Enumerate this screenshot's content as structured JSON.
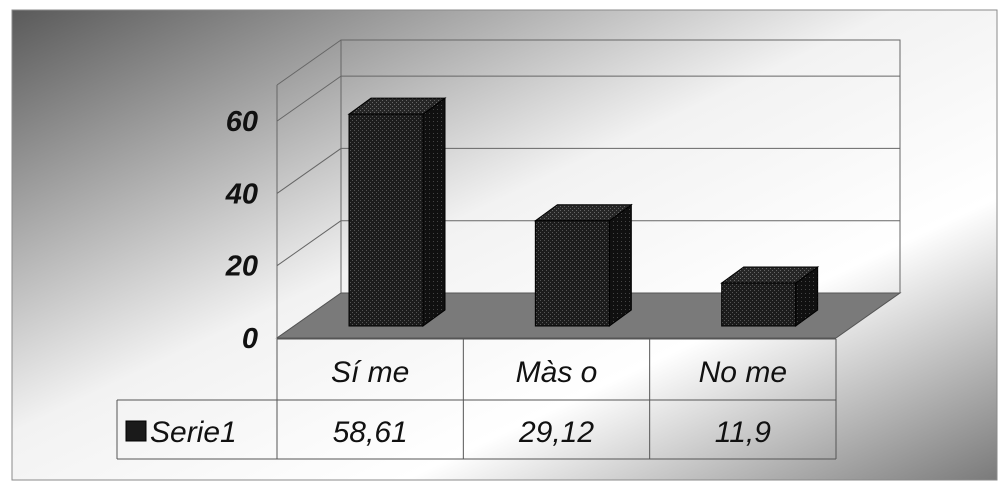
{
  "chart_data": {
    "type": "bar",
    "style": "3d-column-with-data-table",
    "categories": [
      "Sí me",
      "Màs o",
      "No me"
    ],
    "series": [
      {
        "name": "Serie1",
        "values": [
          58.61,
          29.12,
          11.9
        ]
      }
    ],
    "value_labels": [
      "58,61",
      "29,12",
      "11,9"
    ],
    "yticks": [
      0,
      20,
      40,
      60
    ],
    "ylim": [
      0,
      70
    ],
    "grid": true,
    "legend": "in data table",
    "colors": {
      "bar": "#1a1a1a",
      "floor": "#7a7a7a",
      "grid": "#666666"
    }
  }
}
